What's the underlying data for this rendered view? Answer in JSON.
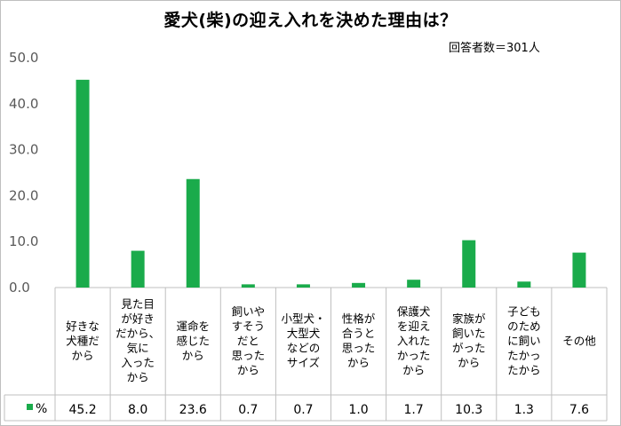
{
  "chart_data": {
    "type": "bar",
    "title": "愛犬(柴)の迎え入れを決めた理由は？",
    "note": "回答者数＝301人",
    "categories": [
      [
        "好きな",
        "犬種だ",
        "から"
      ],
      [
        "見た目",
        "が好き",
        "だから、",
        "気に",
        "入った",
        "から"
      ],
      [
        "運命を",
        "感じた",
        "から"
      ],
      [
        "飼いや",
        "すそう",
        "だと",
        "思った",
        "から"
      ],
      [
        "小型犬・",
        "大型犬",
        "などの",
        "サイズ"
      ],
      [
        "性格が",
        "合うと",
        "思った",
        "から"
      ],
      [
        "保護犬",
        "を迎え",
        "入れた",
        "かった",
        "から"
      ],
      [
        "家族が",
        "飼いた",
        "がった",
        "から"
      ],
      [
        "子ども",
        "のため",
        "に飼い",
        "たかっ",
        "たから"
      ],
      [
        "その他"
      ]
    ],
    "series": [
      {
        "name": "%",
        "values": [
          45.2,
          8.0,
          23.6,
          0.7,
          0.7,
          1.0,
          1.7,
          10.3,
          1.3,
          7.6
        ],
        "value_labels": [
          "45.2",
          "8.0",
          "23.6",
          "0.7",
          "0.7",
          "1.0",
          "1.7",
          "10.3",
          "1.3",
          "7.6"
        ],
        "color": "#1aab4b"
      }
    ],
    "ylim": [
      0,
      50
    ],
    "yticks": [
      "0.0",
      "10.0",
      "20.0",
      "30.0",
      "40.0",
      "50.0"
    ],
    "legend": "bottom-left in data table",
    "grid": false
  }
}
